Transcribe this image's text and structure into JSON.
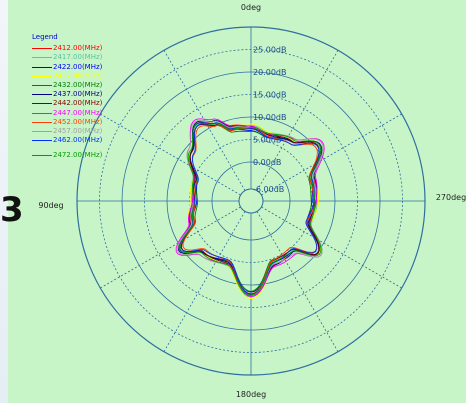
{
  "chart_data": {
    "type": "polar-line",
    "legend_title": "Legend",
    "angle_labels": [
      "0deg",
      "90deg",
      "180deg",
      "270deg"
    ],
    "radial_ticks": [
      "-6.00dB",
      "0.00dB",
      "5.00dB",
      "10.00dB",
      "15.00dB",
      "20.00dB",
      "25.00dB"
    ],
    "radial_values": [
      -6,
      0,
      5,
      10,
      15,
      20,
      25
    ],
    "radial_range": [
      -6,
      30
    ],
    "angle_grid_step_deg": 30,
    "base_pattern_dB": [
      {
        "angle": 0,
        "value": 7.6
      },
      {
        "angle": 15,
        "value": 8.0
      },
      {
        "angle": 25,
        "value": 10.5
      },
      {
        "angle": 35,
        "value": 12.3
      },
      {
        "angle": 50,
        "value": 8.6
      },
      {
        "angle": 70,
        "value": 4.5
      },
      {
        "angle": 90,
        "value": 4.0
      },
      {
        "angle": 110,
        "value": 5.2
      },
      {
        "angle": 125,
        "value": 10.5
      },
      {
        "angle": 137,
        "value": 7.0
      },
      {
        "angle": 160,
        "value": 6.0
      },
      {
        "angle": 180,
        "value": 12.2
      },
      {
        "angle": 200,
        "value": 6.0
      },
      {
        "angle": 220,
        "value": 5.8
      },
      {
        "angle": 232,
        "value": 10.3
      },
      {
        "angle": 250,
        "value": 5.0
      },
      {
        "angle": 270,
        "value": 5.5
      },
      {
        "angle": 290,
        "value": 5.8
      },
      {
        "angle": 310,
        "value": 11.0
      },
      {
        "angle": 325,
        "value": 7.5
      },
      {
        "angle": 345,
        "value": 6.5
      },
      {
        "angle": 360,
        "value": 7.6
      }
    ],
    "series": [
      {
        "name": "2412.00(MHz)",
        "color": "#ff0000",
        "offset_dB": 0.0
      },
      {
        "name": "2417.00(MHz)",
        "color": "#60c0a0",
        "offset_dB": 0.3
      },
      {
        "name": "2422.00(MHz)",
        "color": "#0000ff",
        "offset_dB": -0.3
      },
      {
        "name": "2427.00(MHz)",
        "color": "#ffff00",
        "offset_dB": 0.5
      },
      {
        "name": "2432.00(MHz)",
        "color": "#008000",
        "offset_dB": -0.5
      },
      {
        "name": "2437.00(MHz)",
        "color": "#000080",
        "offset_dB": 0.2
      },
      {
        "name": "2442.00(MHz)",
        "color": "#800000",
        "offset_dB": -0.2
      },
      {
        "name": "2447.00(MHz)",
        "color": "#ff00ff",
        "offset_dB": 0.6
      },
      {
        "name": "2452.00(MHz)",
        "color": "#ff4000",
        "offset_dB": -0.6
      },
      {
        "name": "2457.00(MHz)",
        "color": "#a0a0a0",
        "offset_dB": 0.4
      },
      {
        "name": "2462.00(MHz)",
        "color": "#0030ff",
        "offset_dB": -0.4
      },
      {
        "name": "2472.00(MHz)",
        "color": "#00a000",
        "offset_dB": 0.1
      }
    ]
  },
  "colors": {
    "background": "#c8f5c8",
    "grid": "#2f6fa0",
    "axis_text": "#222222",
    "tick_text": "#1a4a8a"
  },
  "side_glyph": "3"
}
